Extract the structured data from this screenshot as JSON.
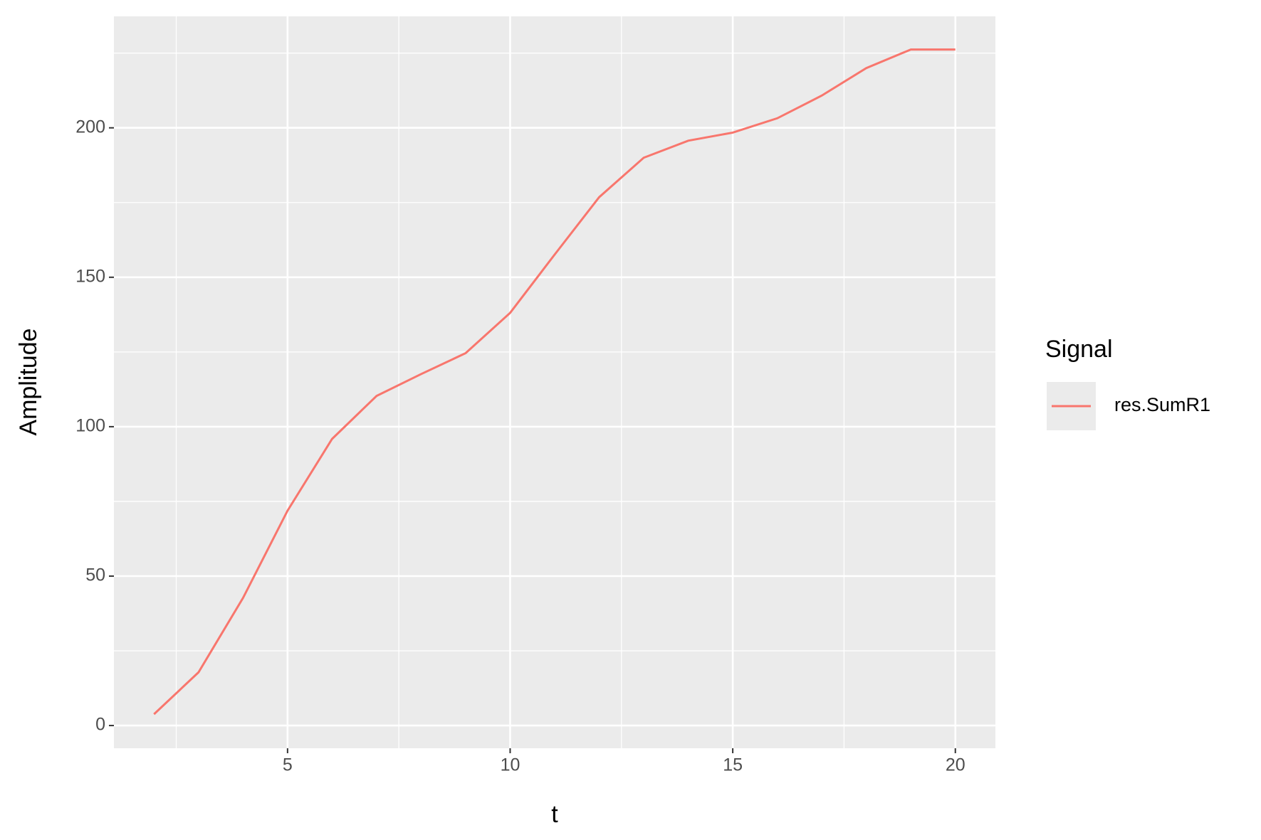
{
  "chart_data": {
    "type": "line",
    "x_label": "t",
    "y_label": "Amplitude",
    "legend_title": "Signal",
    "legend_position": "right",
    "x": [
      2,
      3,
      4,
      5,
      6,
      7,
      8,
      9,
      10,
      11,
      12,
      13,
      14,
      15,
      16,
      17,
      18,
      19,
      20
    ],
    "series": [
      {
        "name": "res.SumR1",
        "color": "#f8766d",
        "values": [
          3.8,
          17.8,
          42.7,
          71.9,
          95.9,
          110.3,
          117.6,
          124.6,
          138.1,
          157.6,
          176.8,
          190.0,
          195.7,
          198.4,
          203.2,
          210.8,
          220.0,
          226.2,
          226.2
        ]
      }
    ],
    "xlim": [
      1.1,
      20.9
    ],
    "xticks": [
      5,
      10,
      15,
      20
    ],
    "ylim": [
      -7.6,
      237.3
    ],
    "yticks": [
      0,
      50,
      100,
      150,
      200
    ],
    "grid": true
  }
}
